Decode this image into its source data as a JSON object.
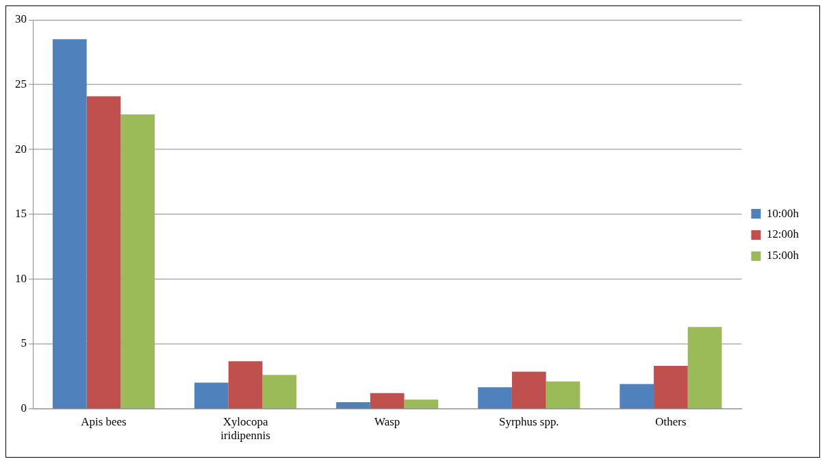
{
  "chart_data": {
    "type": "bar",
    "categories": [
      "Apis bees",
      "Xylocopa iridipennis",
      "Wasp",
      "Syrphus spp.",
      "Others"
    ],
    "series": [
      {
        "name": "10:00h",
        "color": "#4f81bd",
        "values": [
          28.5,
          2.0,
          0.5,
          1.65,
          1.9
        ]
      },
      {
        "name": "12:00h",
        "color": "#c0504d",
        "values": [
          24.1,
          3.65,
          1.2,
          2.85,
          3.3
        ]
      },
      {
        "name": "15:00h",
        "color": "#9bbb59",
        "values": [
          22.7,
          2.6,
          0.7,
          2.1,
          6.3
        ]
      }
    ],
    "ylim": [
      0,
      30
    ],
    "yticks": [
      0,
      5,
      10,
      15,
      20,
      25,
      30
    ],
    "grid": "y",
    "legend": "right"
  }
}
